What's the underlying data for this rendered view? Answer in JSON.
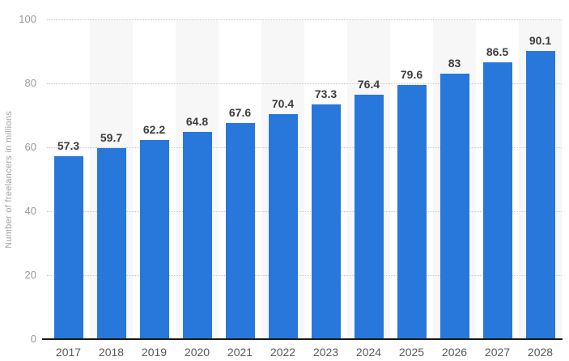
{
  "chart_data": {
    "type": "bar",
    "title": "",
    "xlabel": "",
    "ylabel": "Number of freelancers in millions",
    "categories": [
      "2017",
      "2018",
      "2019",
      "2020",
      "2021",
      "2022",
      "2023",
      "2024",
      "2025",
      "2026",
      "2027",
      "2028"
    ],
    "values": [
      57.3,
      59.7,
      62.2,
      64.8,
      67.6,
      70.4,
      73.3,
      76.4,
      79.6,
      83,
      86.5,
      90.1
    ],
    "value_labels": [
      "57.3",
      "59.7",
      "62.2",
      "64.8",
      "67.6",
      "70.4",
      "73.3",
      "76.4",
      "79.6",
      "83",
      "86.5",
      "90.1"
    ],
    "ylim": [
      0,
      100
    ],
    "y_ticks": [
      0,
      20,
      40,
      60,
      80,
      100
    ],
    "grid": "horizontal-dotted",
    "legend": "none",
    "stripes": "alternate-category-columns",
    "colors": {
      "bar": "#2877DB",
      "stripe": "#F7F7F7",
      "gridline": "#C9C9C9",
      "axis_line": "#1A1A1A",
      "y_tick_label": "#999999",
      "x_tick_label": "#595959",
      "value_label": "#3D3D3D",
      "y_axis_title": "#A0A0A0",
      "background": "#FFFFFF"
    }
  }
}
